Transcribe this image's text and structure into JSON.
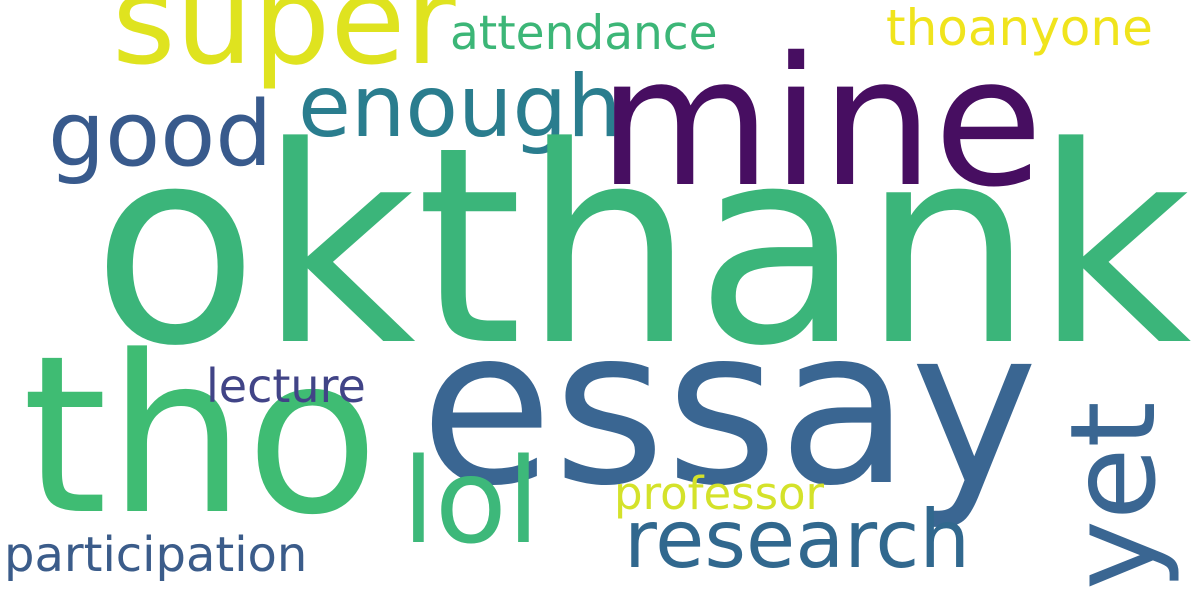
{
  "words": {
    "okthank": {
      "text": "okthank",
      "color": "#3bb57a"
    },
    "essay": {
      "text": "essay",
      "color": "#3a6692"
    },
    "tho": {
      "text": "tho",
      "color": "#3fbc73"
    },
    "mine": {
      "text": "mine",
      "color": "#470e61"
    },
    "super": {
      "text": "super",
      "color": "#dfe31f"
    },
    "enough": {
      "text": "enough",
      "color": "#2a7d8e"
    },
    "good": {
      "text": "good",
      "color": "#385a8c"
    },
    "attendance": {
      "text": "attendance",
      "color": "#3cb677"
    },
    "thoanyone": {
      "text": "thoanyone",
      "color": "#f0e41d"
    },
    "lol": {
      "text": "lol",
      "color": "#3db87a"
    },
    "research": {
      "text": "research",
      "color": "#31688e"
    },
    "professor": {
      "text": "professor",
      "color": "#d4e22a"
    },
    "lecture": {
      "text": "lecture",
      "color": "#414487"
    },
    "participation": {
      "text": "participation",
      "color": "#3b5c8a"
    },
    "yet": {
      "text": "yet",
      "color": "#3a6692"
    }
  }
}
